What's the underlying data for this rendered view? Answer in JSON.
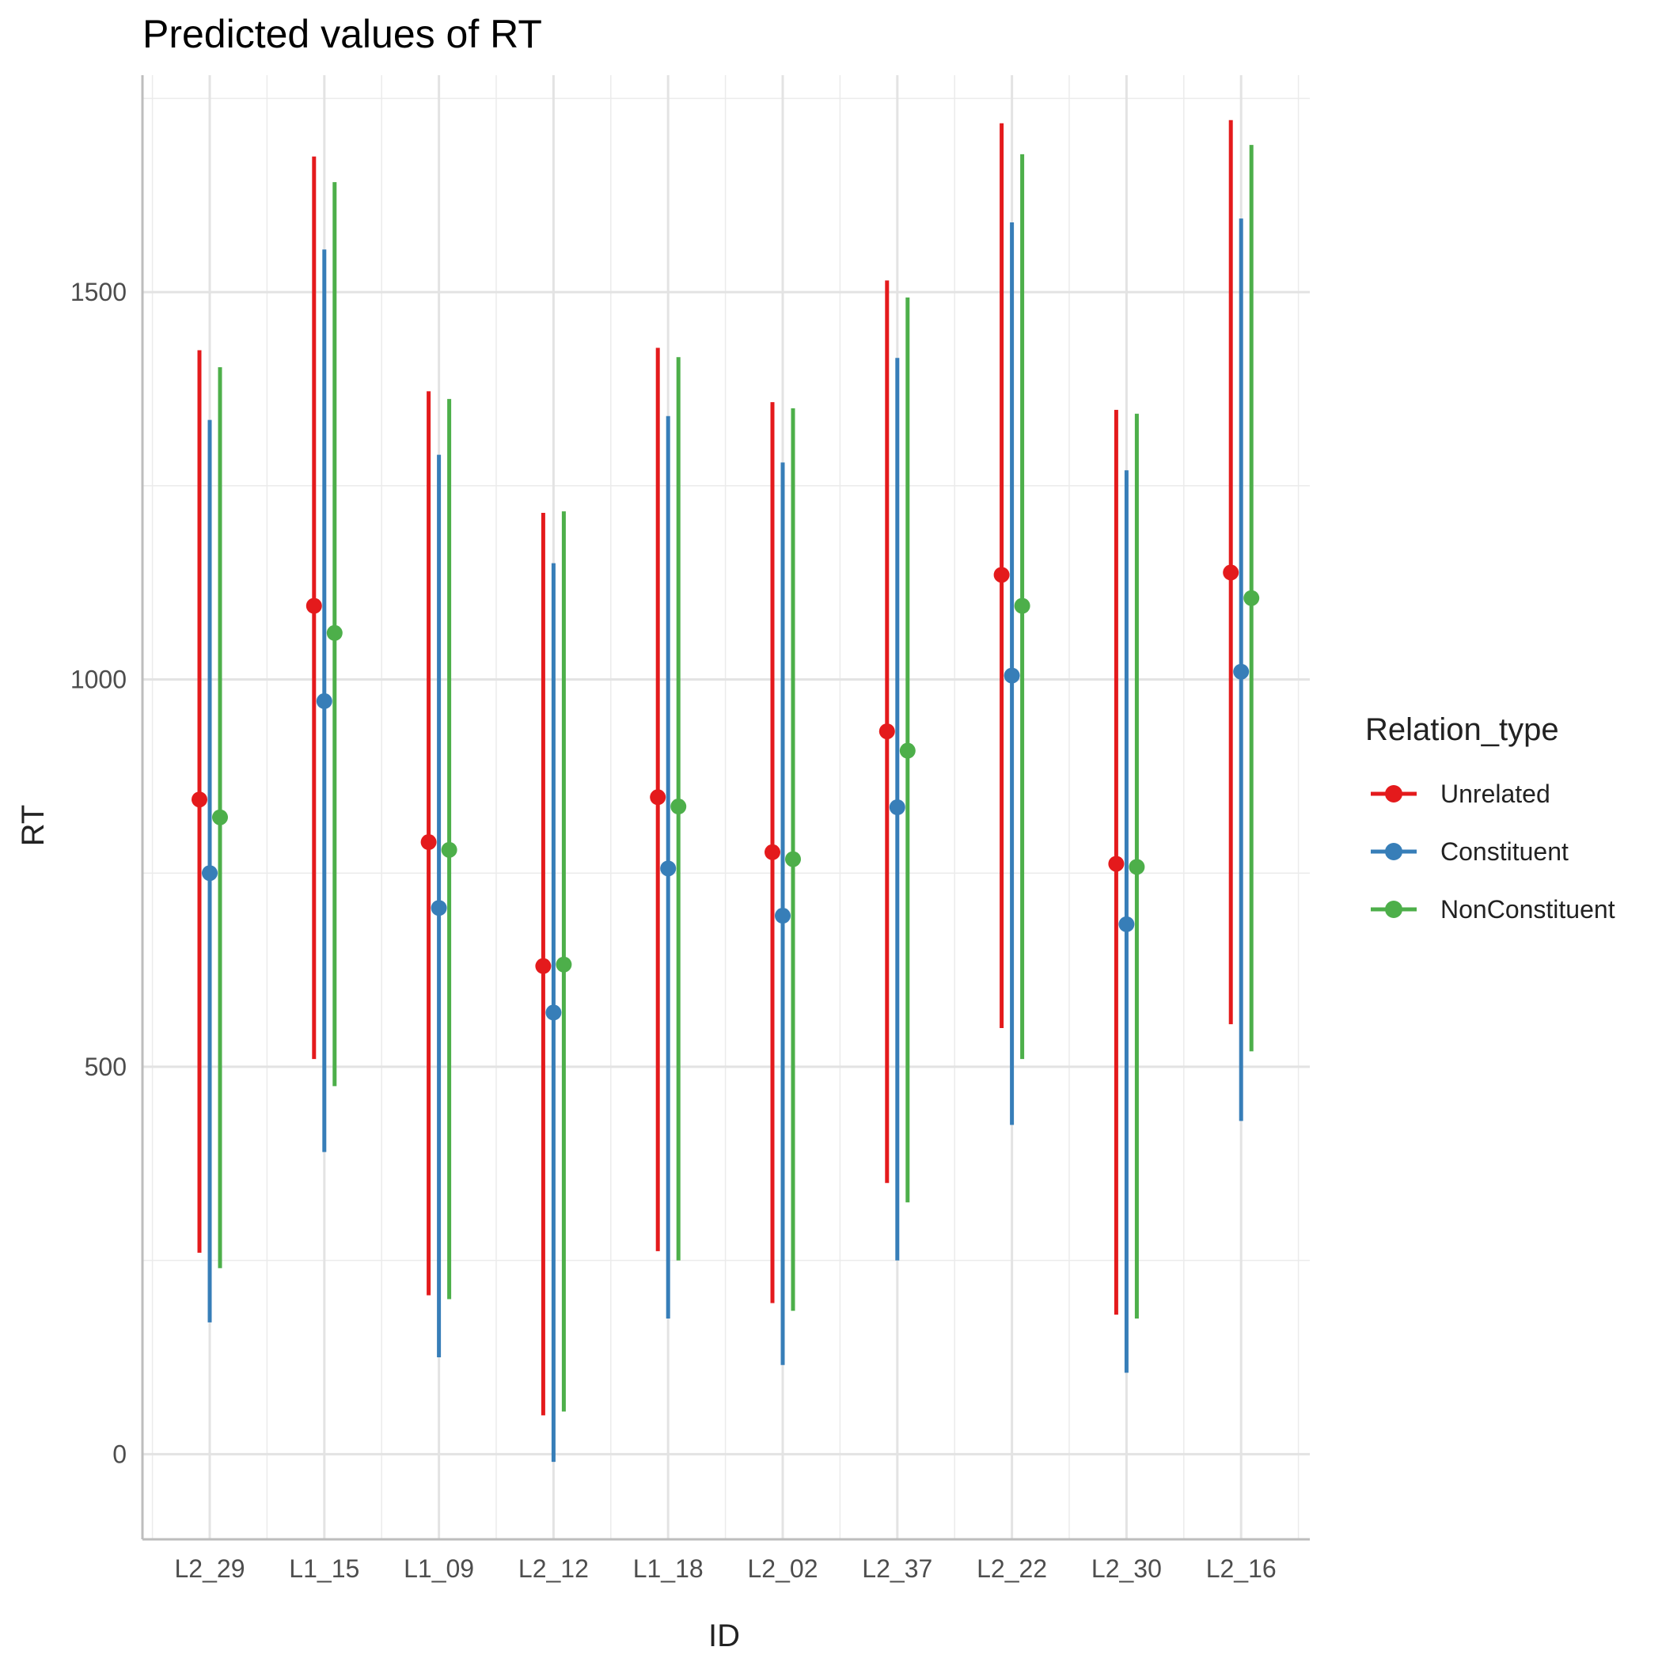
{
  "chart_data": {
    "type": "errorbar",
    "title": "Predicted values of RT",
    "xlabel": "ID",
    "ylabel": "RT",
    "ylim": [
      -110,
      1780
    ],
    "yticks": [
      0,
      500,
      1000,
      1500
    ],
    "grid": true,
    "categories": [
      "L2_29",
      "L1_15",
      "L1_09",
      "L2_12",
      "L1_18",
      "L2_02",
      "L2_37",
      "L2_22",
      "L2_30",
      "L2_16"
    ],
    "legend": {
      "title": "Relation_type",
      "placement": "right"
    },
    "series": [
      {
        "name": "Unrelated",
        "color": "#E41A1C",
        "values": [
          845,
          1095,
          790,
          630,
          848,
          777,
          933,
          1135,
          762,
          1138
        ],
        "lower": [
          260,
          510,
          205,
          50,
          262,
          195,
          350,
          550,
          180,
          555
        ],
        "upper": [
          1425,
          1675,
          1372,
          1215,
          1428,
          1358,
          1515,
          1718,
          1348,
          1722
        ]
      },
      {
        "name": "Constituent",
        "color": "#377EB8",
        "values": [
          750,
          972,
          705,
          570,
          756,
          695,
          835,
          1005,
          684,
          1010
        ],
        "lower": [
          170,
          390,
          125,
          -10,
          175,
          115,
          250,
          425,
          105,
          430
        ],
        "upper": [
          1335,
          1555,
          1290,
          1150,
          1340,
          1280,
          1415,
          1590,
          1270,
          1595
        ]
      },
      {
        "name": "NonConstituent",
        "color": "#4DAF4A",
        "values": [
          822,
          1060,
          780,
          632,
          836,
          768,
          908,
          1095,
          758,
          1105
        ],
        "lower": [
          240,
          475,
          200,
          55,
          250,
          185,
          325,
          510,
          175,
          520
        ],
        "upper": [
          1403,
          1642,
          1362,
          1217,
          1416,
          1350,
          1493,
          1678,
          1343,
          1690
        ]
      }
    ]
  }
}
